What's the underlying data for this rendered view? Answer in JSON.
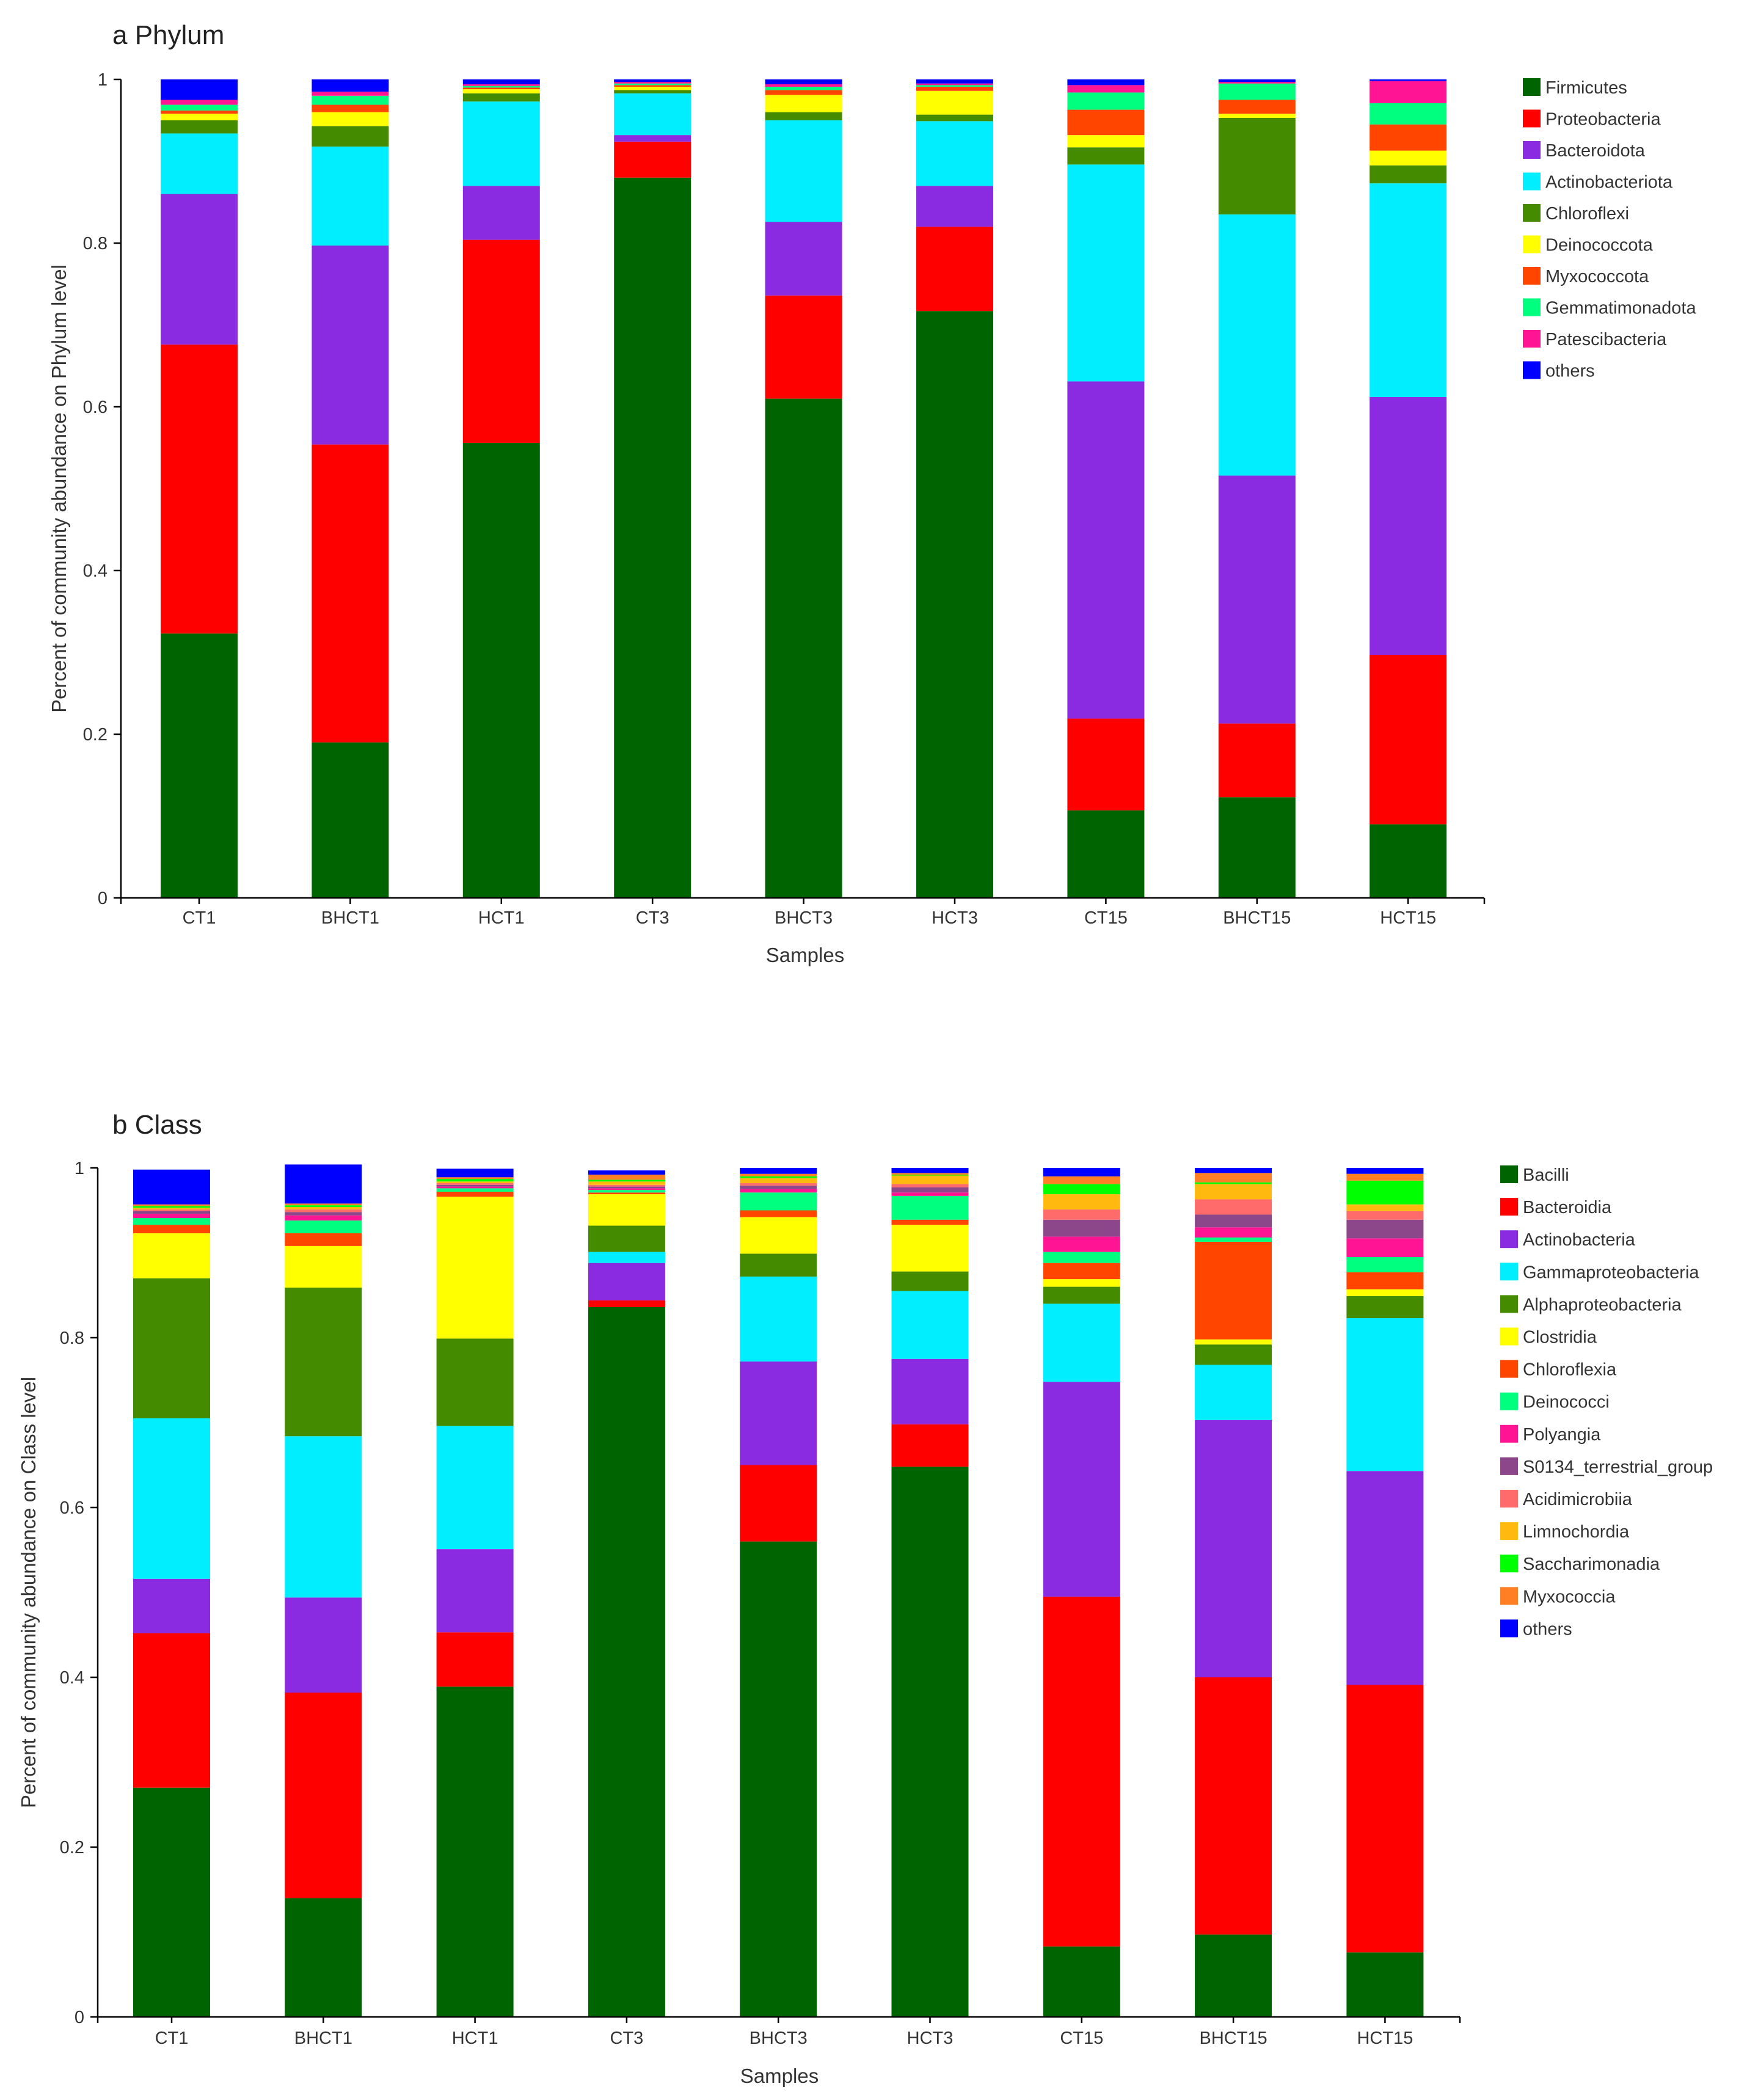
{
  "chart_data": [
    {
      "type": "bar",
      "stacked": true,
      "title": "a Phylum",
      "xlabel": "Samples",
      "ylabel": "Percent of community abundance on Phylum level",
      "ylim": [
        0,
        1
      ],
      "yticks": [
        "0",
        "0.2",
        "0.4",
        "0.6",
        "0.8",
        "1"
      ],
      "grid": false,
      "legend_position": "right",
      "categories": [
        "CT1",
        "BHCT1",
        "HCT1",
        "CT3",
        "BHCT3",
        "HCT3",
        "CT15",
        "BHCT15",
        "HCT15"
      ],
      "series": [
        {
          "name": "Firmicutes",
          "color": "#006400",
          "values": [
            0.323,
            0.19,
            0.556,
            0.88,
            0.61,
            0.717,
            0.107,
            0.123,
            0.09
          ]
        },
        {
          "name": "Proteobacteria",
          "color": "#ff0000",
          "values": [
            0.353,
            0.364,
            0.248,
            0.044,
            0.126,
            0.103,
            0.112,
            0.09,
            0.207
          ]
        },
        {
          "name": "Bacteroidota",
          "color": "#8a2be2",
          "values": [
            0.184,
            0.243,
            0.066,
            0.008,
            0.09,
            0.05,
            0.412,
            0.303,
            0.315
          ]
        },
        {
          "name": "Actinobacteriota",
          "color": "#00eeff",
          "values": [
            0.074,
            0.121,
            0.103,
            0.051,
            0.124,
            0.079,
            0.265,
            0.319,
            0.261
          ]
        },
        {
          "name": "Chloroflexi",
          "color": "#458b00",
          "values": [
            0.016,
            0.025,
            0.01,
            0.004,
            0.01,
            0.008,
            0.021,
            0.118,
            0.022
          ]
        },
        {
          "name": "Deinococcota",
          "color": "#ffff00",
          "values": [
            0.008,
            0.017,
            0.005,
            0.004,
            0.021,
            0.029,
            0.015,
            0.005,
            0.018
          ]
        },
        {
          "name": "Myxococcota",
          "color": "#ff4500",
          "values": [
            0.004,
            0.009,
            0.002,
            0.002,
            0.006,
            0.005,
            0.031,
            0.017,
            0.032
          ]
        },
        {
          "name": "Gemmatimonadota",
          "color": "#00ff7f",
          "values": [
            0.007,
            0.011,
            0.002,
            0.002,
            0.004,
            0.002,
            0.021,
            0.02,
            0.026
          ]
        },
        {
          "name": "Patescibacteria",
          "color": "#ff1493",
          "values": [
            0.006,
            0.005,
            0.002,
            0.002,
            0.003,
            0.002,
            0.009,
            0.002,
            0.027
          ]
        },
        {
          "name": "others",
          "color": "#0000ff",
          "values": [
            0.025,
            0.015,
            0.006,
            0.003,
            0.006,
            0.005,
            0.007,
            0.003,
            0.002
          ]
        }
      ]
    },
    {
      "type": "bar",
      "stacked": true,
      "title": "b Class",
      "xlabel": "Samples",
      "ylabel": "Percent of community abundance on Class level",
      "ylim": [
        0,
        1
      ],
      "yticks": [
        "0",
        "0.2",
        "0.4",
        "0.6",
        "0.8",
        "1"
      ],
      "grid": false,
      "legend_position": "right",
      "categories": [
        "CT1",
        "BHCT1",
        "HCT1",
        "CT3",
        "BHCT3",
        "HCT3",
        "CT15",
        "BHCT15",
        "HCT15"
      ],
      "series": [
        {
          "name": "Bacilli",
          "color": "#006400",
          "values": [
            0.27,
            0.14,
            0.389,
            0.836,
            0.56,
            0.648,
            0.083,
            0.097,
            0.076
          ]
        },
        {
          "name": "Bacteroidia",
          "color": "#ff0000",
          "values": [
            0.182,
            0.242,
            0.064,
            0.008,
            0.09,
            0.05,
            0.412,
            0.303,
            0.315
          ]
        },
        {
          "name": "Actinobacteria",
          "color": "#8a2be2",
          "values": [
            0.064,
            0.112,
            0.098,
            0.044,
            0.122,
            0.077,
            0.253,
            0.303,
            0.252
          ]
        },
        {
          "name": "Gammaproteobacteria",
          "color": "#00eeff",
          "values": [
            0.189,
            0.19,
            0.145,
            0.013,
            0.1,
            0.08,
            0.092,
            0.065,
            0.18
          ]
        },
        {
          "name": "Alphaproteobacteria",
          "color": "#458b00",
          "values": [
            0.165,
            0.175,
            0.103,
            0.031,
            0.027,
            0.023,
            0.02,
            0.024,
            0.026
          ]
        },
        {
          "name": "Clostridia",
          "color": "#ffff00",
          "values": [
            0.053,
            0.049,
            0.167,
            0.037,
            0.043,
            0.055,
            0.009,
            0.006,
            0.008
          ]
        },
        {
          "name": "Chloroflexia",
          "color": "#ff4500",
          "values": [
            0.01,
            0.015,
            0.006,
            0.002,
            0.008,
            0.006,
            0.019,
            0.115,
            0.02
          ]
        },
        {
          "name": "Deinococci",
          "color": "#00ff7f",
          "values": [
            0.008,
            0.015,
            0.004,
            0.003,
            0.021,
            0.028,
            0.013,
            0.005,
            0.018
          ]
        },
        {
          "name": "Polyangia",
          "color": "#ff1493",
          "values": [
            0.005,
            0.006,
            0.002,
            0.002,
            0.004,
            0.004,
            0.018,
            0.012,
            0.022
          ]
        },
        {
          "name": "S0134_terrestrial_group",
          "color": "#8b4789",
          "values": [
            0.003,
            0.004,
            0.002,
            0.002,
            0.004,
            0.006,
            0.02,
            0.015,
            0.022
          ]
        },
        {
          "name": "Acidimicrobiia",
          "color": "#ff6a6a",
          "values": [
            0.002,
            0.003,
            0.002,
            0.002,
            0.003,
            0.004,
            0.012,
            0.018,
            0.01
          ]
        },
        {
          "name": "Limnochordia",
          "color": "#ffb90f",
          "values": [
            0.002,
            0.003,
            0.002,
            0.004,
            0.006,
            0.01,
            0.018,
            0.018,
            0.008
          ]
        },
        {
          "name": "Saccharimonadia",
          "color": "#00ff00",
          "values": [
            0.002,
            0.002,
            0.003,
            0.002,
            0.002,
            0.001,
            0.012,
            0.002,
            0.028
          ]
        },
        {
          "name": "Myxococcia",
          "color": "#ff7f24",
          "values": [
            0.002,
            0.002,
            0.002,
            0.006,
            0.003,
            0.002,
            0.009,
            0.011,
            0.008
          ]
        },
        {
          "name": "others",
          "color": "#0000ff",
          "values": [
            0.041,
            0.046,
            0.01,
            0.005,
            0.007,
            0.006,
            0.01,
            0.006,
            0.007
          ]
        }
      ]
    }
  ]
}
